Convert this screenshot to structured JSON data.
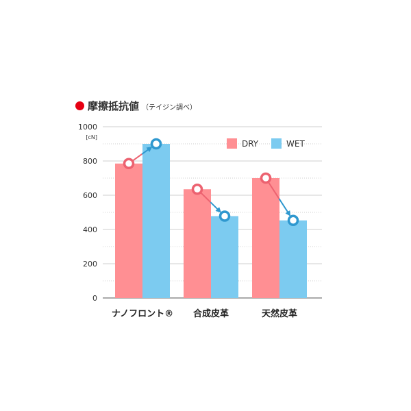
{
  "colors": {
    "dry": "#ff8f93",
    "wet": "#7ccbf0",
    "dry_marker": "#ec6270",
    "wet_marker": "#2f98cf",
    "title_dot": "#e60012",
    "highlight_category": "#e60012",
    "grid": "#cfcfcf",
    "axis": "#555555"
  },
  "title": {
    "main": "摩擦抵抗値",
    "sub": "（テイジン調べ）"
  },
  "chart_data": {
    "type": "bar",
    "title": "摩擦抵抗値",
    "subtitle": "（テイジン調べ）",
    "unit": "[cN]",
    "categories": [
      "ナノフロント®",
      "合成皮革",
      "天然皮革"
    ],
    "highlight_category": 0,
    "series": [
      {
        "name": "DRY",
        "color": "#ff8f93",
        "marker": "#ec6270",
        "values": [
          785,
          635,
          700
        ]
      },
      {
        "name": "WET",
        "color": "#7ccbf0",
        "marker": "#2f98cf",
        "values": [
          900,
          478,
          453
        ]
      }
    ],
    "yticks": [
      0,
      200,
      400,
      600,
      800,
      1000
    ],
    "ylim": [
      0,
      1000
    ],
    "grid": true,
    "legend": "top-right",
    "annotations": "arrows from DRY to WET marker in each category"
  }
}
